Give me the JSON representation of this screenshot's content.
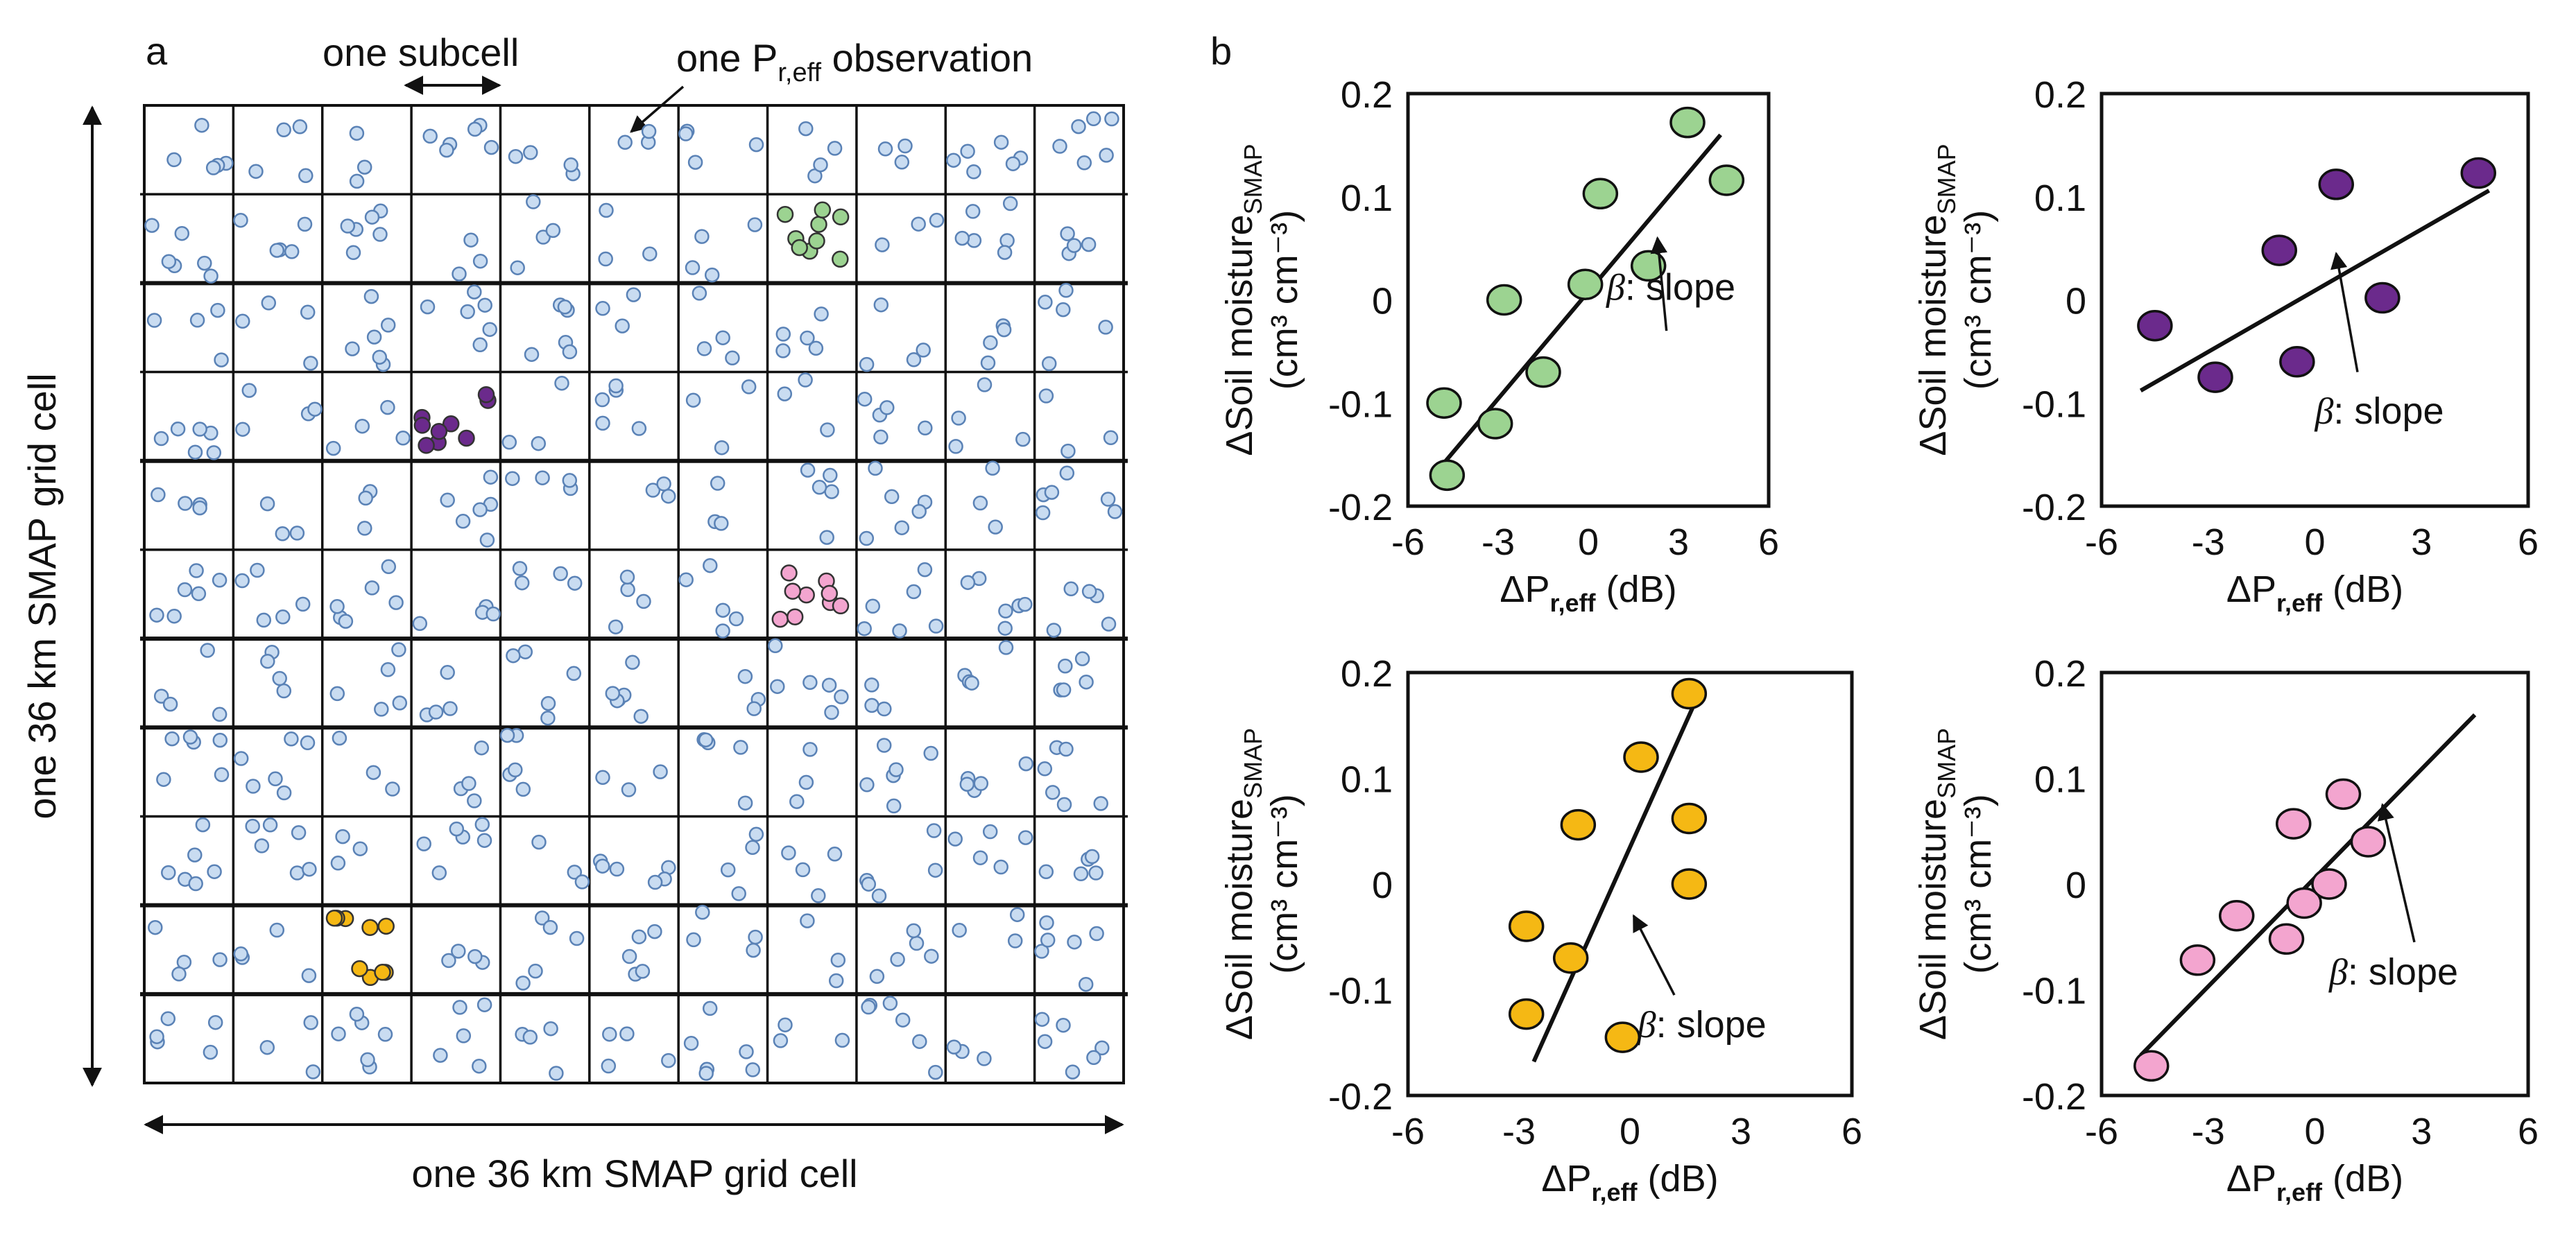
{
  "panel_a": {
    "letter": "a",
    "subcell_label": "one subcell",
    "observation_label": "one P",
    "observation_subscript": "r,eff",
    "observation_suffix": " observation",
    "x_caption": "one 36 km SMAP grid cell",
    "y_caption": "one 36 km SMAP grid cell",
    "grid_rows": 11,
    "grid_cols": 11,
    "colors": {
      "observation": "#c9dcf1",
      "observation_edge": "#5a82b6",
      "green": "#9cd391",
      "purple": "#6b2a8c",
      "pink": "#f3a5cf",
      "orange": "#f5b814"
    }
  },
  "panel_b": {
    "letter": "b",
    "slope_label": ": slope",
    "beta_symbol": "β"
  },
  "chart_data": [
    {
      "type": "scatter",
      "id": "green",
      "color": "#9cd391",
      "ylabel_line1": "ΔSoil moisture",
      "ylabel_sub": "SMAP",
      "ylabel_line2": "(cm³ cm⁻³)",
      "xlabel": "ΔP",
      "xlabel_sub": "r,eff",
      "xlabel_unit": " (dB)",
      "xlim": [
        -6,
        6
      ],
      "ylim": [
        -0.2,
        0.2
      ],
      "xticks": [
        "-6",
        "-3",
        "0",
        "3",
        "6"
      ],
      "yticks": [
        "0.2",
        "0.1",
        "0",
        "-0.1",
        "-0.2"
      ],
      "x": [
        -4.8,
        -4.7,
        -3.1,
        -2.8,
        -1.5,
        -0.1,
        0.4,
        2.0,
        3.3,
        4.6
      ],
      "y": [
        -0.1,
        -0.17,
        -0.12,
        0.0,
        -0.07,
        0.015,
        0.103,
        0.033,
        0.172,
        0.116
      ],
      "fit": [
        [
          -5.0,
          -0.165
        ],
        [
          4.4,
          0.16
        ]
      ]
    },
    {
      "type": "scatter",
      "id": "purple",
      "color": "#6b2a8c",
      "ylabel_line1": "ΔSoil moisture",
      "ylabel_sub": "SMAP",
      "ylabel_line2": "(cm³ cm⁻³)",
      "xlabel": "ΔP",
      "xlabel_sub": "r,eff",
      "xlabel_unit": " (dB)",
      "xlim": [
        -6,
        6
      ],
      "ylim": [
        -0.2,
        0.2
      ],
      "xticks": [
        "-6",
        "-3",
        "0",
        "3",
        "6"
      ],
      "yticks": [
        "0.2",
        "0.1",
        "0",
        "-0.1",
        "-0.2"
      ],
      "x": [
        -4.5,
        -2.8,
        -1.0,
        -0.5,
        0.6,
        1.9,
        4.6
      ],
      "y": [
        -0.025,
        -0.075,
        0.048,
        -0.06,
        0.112,
        0.002,
        0.123
      ],
      "fit": [
        [
          -4.9,
          -0.088
        ],
        [
          4.9,
          0.106
        ]
      ]
    },
    {
      "type": "scatter",
      "id": "orange",
      "color": "#f5b814",
      "ylabel_line1": "ΔSoil moisture",
      "ylabel_sub": "SMAP",
      "ylabel_line2": "(cm³ cm⁻³)",
      "xlabel": "ΔP",
      "xlabel_sub": "r,eff",
      "xlabel_unit": " (dB)",
      "xlim": [
        -6,
        6
      ],
      "ylim": [
        -0.2,
        0.2
      ],
      "xticks": [
        "-6",
        "-3",
        "0",
        "3",
        "6"
      ],
      "yticks": [
        "0.2",
        "0.1",
        "0",
        "-0.1",
        "-0.2"
      ],
      "x": [
        -2.8,
        -2.8,
        -1.6,
        -1.4,
        -0.2,
        0.3,
        1.6,
        1.6,
        1.6
      ],
      "y": [
        -0.04,
        -0.123,
        -0.07,
        0.056,
        -0.145,
        0.12,
        0.0,
        0.062,
        0.18
      ],
      "fit": [
        [
          -2.6,
          -0.168
        ],
        [
          1.8,
          0.175
        ]
      ]
    },
    {
      "type": "scatter",
      "id": "pink",
      "color": "#f3a5cf",
      "ylabel_line1": "ΔSoil moisture",
      "ylabel_sub": "SMAP",
      "ylabel_line2": "(cm³ cm⁻³)",
      "xlabel": "ΔP",
      "xlabel_sub": "r,eff",
      "xlabel_unit": " (dB)",
      "xlim": [
        -6,
        6
      ],
      "ylim": [
        -0.2,
        0.2
      ],
      "xticks": [
        "-6",
        "-3",
        "0",
        "3",
        "6"
      ],
      "yticks": [
        "0.2",
        "0.1",
        "0",
        "-0.1",
        "-0.2"
      ],
      "x": [
        -4.6,
        -3.3,
        -2.2,
        -0.8,
        -0.6,
        -0.3,
        0.4,
        0.8,
        1.5
      ],
      "y": [
        -0.172,
        -0.072,
        -0.03,
        -0.052,
        0.057,
        -0.018,
        0.0,
        0.085,
        0.04
      ],
      "fit": [
        [
          -4.9,
          -0.162
        ],
        [
          4.5,
          0.16
        ]
      ]
    }
  ]
}
